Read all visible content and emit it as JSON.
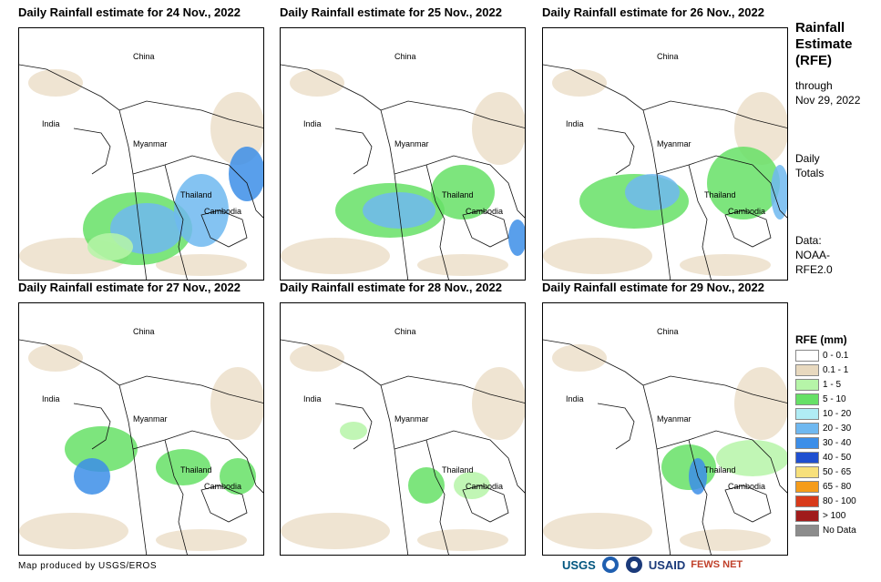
{
  "panels": [
    {
      "title": "Daily Rainfall estimate for 24 Nov., 2022"
    },
    {
      "title": "Daily Rainfall estimate for 25 Nov., 2022"
    },
    {
      "title": "Daily Rainfall estimate for 26 Nov., 2022"
    },
    {
      "title": "Daily Rainfall estimate for 27 Nov., 2022"
    },
    {
      "title": "Daily Rainfall estimate for 28 Nov., 2022"
    },
    {
      "title": "Daily Rainfall estimate for 29 Nov., 2022"
    }
  ],
  "map_labels": {
    "china": "China",
    "india": "India",
    "myanmar": "Myanmar",
    "thailand": "Thailand",
    "cambodia": "Cambodia"
  },
  "sidebar": {
    "title_line1": "Rainfall",
    "title_line2": "Estimate",
    "title_line3": "(RFE)",
    "through": "through",
    "date": "Nov 29, 2022",
    "daily": "Daily",
    "totals": "Totals",
    "data_label": "Data:",
    "data_src1": "NOAA-",
    "data_src2": "RFE2.0"
  },
  "legend": {
    "title": "RFE (mm)",
    "items": [
      {
        "label": "0 - 0.1",
        "color": "#ffffff"
      },
      {
        "label": "0.1 - 1",
        "color": "#e8d9bf"
      },
      {
        "label": "1 - 5",
        "color": "#b6f5a8"
      },
      {
        "label": "5 - 10",
        "color": "#66e066"
      },
      {
        "label": "10 - 20",
        "color": "#b0ecf5"
      },
      {
        "label": "20 - 30",
        "color": "#6fb8f0"
      },
      {
        "label": "30 - 40",
        "color": "#3c8ee8"
      },
      {
        "label": "40 - 50",
        "color": "#1f4fd0"
      },
      {
        "label": "50 - 65",
        "color": "#f7e07a"
      },
      {
        "label": "65 - 80",
        "color": "#f59c1a"
      },
      {
        "label": "80 - 100",
        "color": "#d83a1a"
      },
      {
        "label": "> 100",
        "color": "#a01c1c"
      },
      {
        "label": "No Data",
        "color": "#8c8c8c"
      }
    ]
  },
  "credit": "Map produced by USGS/EROS",
  "logos": {
    "usgs": "USGS",
    "usaid": "USAID",
    "fewsnet": "FEWS NET"
  }
}
